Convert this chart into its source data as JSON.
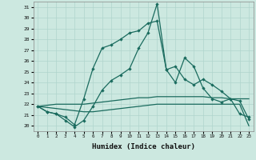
{
  "xlabel": "Humidex (Indice chaleur)",
  "background_color": "#cce8e0",
  "grid_color": "#b0d4cc",
  "line_color": "#1a6b5e",
  "xlim": [
    -0.5,
    23.5
  ],
  "ylim": [
    19.5,
    31.5
  ],
  "yticks": [
    20,
    21,
    22,
    23,
    24,
    25,
    26,
    27,
    28,
    29,
    30,
    31
  ],
  "xticks": [
    0,
    1,
    2,
    3,
    4,
    5,
    6,
    7,
    8,
    9,
    10,
    11,
    12,
    13,
    14,
    15,
    16,
    17,
    18,
    19,
    20,
    21,
    22,
    23
  ],
  "series1": [
    21.8,
    21.3,
    21.1,
    20.5,
    19.9,
    20.5,
    21.8,
    23.3,
    24.2,
    24.7,
    25.3,
    27.2,
    28.6,
    31.3,
    25.2,
    24.0,
    26.3,
    25.5,
    23.5,
    22.5,
    22.2,
    22.5,
    21.1,
    20.8
  ],
  "series2": [
    21.8,
    21.3,
    21.1,
    20.8,
    20.1,
    22.5,
    25.3,
    27.2,
    27.5,
    28.0,
    28.6,
    28.8,
    29.5,
    29.7,
    25.2,
    25.5,
    24.3,
    23.8,
    24.3,
    23.8,
    23.2,
    22.5,
    22.3,
    20.6
  ],
  "trend1": [
    21.8,
    21.9,
    22.0,
    22.0,
    22.0,
    22.0,
    22.1,
    22.2,
    22.3,
    22.4,
    22.5,
    22.6,
    22.6,
    22.7,
    22.7,
    22.7,
    22.7,
    22.7,
    22.7,
    22.6,
    22.6,
    22.5,
    22.5,
    22.5
  ],
  "trend2": [
    21.8,
    21.7,
    21.6,
    21.5,
    21.4,
    21.3,
    21.3,
    21.4,
    21.5,
    21.6,
    21.7,
    21.8,
    21.9,
    22.0,
    22.0,
    22.0,
    22.0,
    22.0,
    22.0,
    22.0,
    22.0,
    22.0,
    22.0,
    20.0
  ]
}
